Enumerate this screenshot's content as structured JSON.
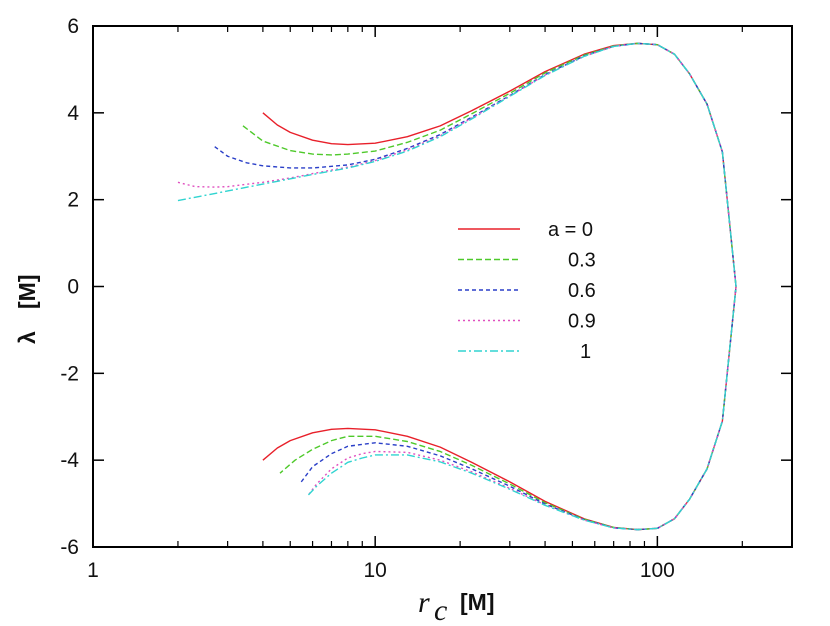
{
  "chart_data": {
    "type": "line",
    "xscale": "log",
    "xlim": [
      1,
      300
    ],
    "ylim": [
      -6,
      6
    ],
    "xticks": [
      {
        "value": 1,
        "label": "1"
      },
      {
        "value": 10,
        "label": "10"
      },
      {
        "value": 100,
        "label": "100"
      }
    ],
    "yticks": [
      {
        "value": 6,
        "label": "6"
      },
      {
        "value": 4,
        "label": "4"
      },
      {
        "value": 2,
        "label": "2"
      },
      {
        "value": 0,
        "label": "0"
      },
      {
        "value": -2,
        "label": "-2"
      },
      {
        "value": -4,
        "label": "-4"
      },
      {
        "value": -6,
        "label": "-6"
      }
    ],
    "xlabel": {
      "symbol": "r",
      "subscript": "c",
      "unit": "[M]"
    },
    "ylabel": {
      "symbol": "λ",
      "unit": "[M]"
    },
    "legend": {
      "position": "center-right"
    },
    "series": [
      {
        "name": "a = 0",
        "color": "#e8202a",
        "dash": "none",
        "x": [
          4.0,
          4.5,
          5,
          6,
          7,
          8,
          10,
          13,
          17,
          22,
          30,
          40,
          55,
          70,
          85,
          100,
          115,
          130,
          150,
          170,
          190,
          170,
          150,
          130,
          115,
          100,
          85,
          70,
          55,
          40,
          30,
          22,
          17,
          13,
          10,
          8,
          7,
          6,
          5,
          4.5,
          4.0
        ],
        "y": [
          4.0,
          3.72,
          3.55,
          3.37,
          3.29,
          3.27,
          3.3,
          3.45,
          3.7,
          4.05,
          4.5,
          4.95,
          5.35,
          5.55,
          5.6,
          5.57,
          5.35,
          4.9,
          4.2,
          3.1,
          0.0,
          -3.1,
          -4.2,
          -4.9,
          -5.35,
          -5.57,
          -5.6,
          -5.55,
          -5.35,
          -4.95,
          -4.5,
          -4.05,
          -3.7,
          -3.45,
          -3.3,
          -3.27,
          -3.29,
          -3.37,
          -3.55,
          -3.72,
          -4.0
        ]
      },
      {
        "name": "0.3",
        "color": "#4ec92a",
        "dash": "6,3",
        "x": [
          3.4,
          4,
          5,
          6,
          7,
          8,
          10,
          13,
          17,
          22,
          30,
          40,
          55,
          70,
          85,
          100,
          115,
          130,
          150,
          170,
          190,
          170,
          150,
          130,
          115,
          100,
          85,
          70,
          55,
          40,
          30,
          22,
          17,
          13,
          10,
          8,
          7,
          6,
          5.2,
          4.6
        ],
        "y": [
          3.7,
          3.35,
          3.13,
          3.05,
          3.03,
          3.05,
          3.12,
          3.32,
          3.6,
          3.98,
          4.45,
          4.92,
          5.33,
          5.54,
          5.6,
          5.57,
          5.35,
          4.9,
          4.2,
          3.1,
          0.0,
          -3.1,
          -4.2,
          -4.9,
          -5.35,
          -5.57,
          -5.6,
          -5.55,
          -5.36,
          -4.98,
          -4.55,
          -4.12,
          -3.8,
          -3.57,
          -3.45,
          -3.45,
          -3.55,
          -3.75,
          -4.0,
          -4.3
        ]
      },
      {
        "name": "0.6",
        "color": "#2a3fc8",
        "dash": "4,3",
        "x": [
          2.7,
          3,
          3.5,
          4,
          5,
          6,
          8,
          10,
          13,
          17,
          22,
          30,
          40,
          55,
          70,
          85,
          100,
          115,
          130,
          150,
          170,
          190,
          170,
          150,
          130,
          115,
          100,
          85,
          70,
          55,
          40,
          30,
          22,
          17,
          13,
          10,
          8,
          7,
          6,
          5.4
        ],
        "y": [
          3.22,
          3.0,
          2.85,
          2.78,
          2.73,
          2.73,
          2.8,
          2.93,
          3.18,
          3.5,
          3.9,
          4.4,
          4.88,
          5.31,
          5.53,
          5.6,
          5.57,
          5.35,
          4.9,
          4.2,
          3.1,
          0.0,
          -3.1,
          -4.2,
          -4.9,
          -5.35,
          -5.57,
          -5.6,
          -5.56,
          -5.37,
          -5.01,
          -4.6,
          -4.2,
          -3.9,
          -3.68,
          -3.6,
          -3.68,
          -3.85,
          -4.15,
          -4.55
        ]
      },
      {
        "name": "0.9",
        "color": "#e050c0",
        "dash": "2,3",
        "x": [
          2.0,
          2.3,
          2.7,
          3,
          4,
          5,
          6,
          8,
          10,
          13,
          17,
          22,
          30,
          40,
          55,
          70,
          85,
          100,
          115,
          130,
          150,
          170,
          190,
          170,
          150,
          130,
          115,
          100,
          85,
          70,
          55,
          40,
          30,
          22,
          17,
          13,
          10,
          9,
          8,
          7,
          6.2,
          5.8
        ],
        "y": [
          2.4,
          2.3,
          2.29,
          2.3,
          2.4,
          2.5,
          2.6,
          2.75,
          2.9,
          3.15,
          3.47,
          3.88,
          4.39,
          4.87,
          5.3,
          5.53,
          5.6,
          5.57,
          5.35,
          4.9,
          4.2,
          3.1,
          0.0,
          -3.1,
          -4.2,
          -4.9,
          -5.35,
          -5.57,
          -5.6,
          -5.56,
          -5.38,
          -5.03,
          -4.65,
          -4.27,
          -4.0,
          -3.82,
          -3.8,
          -3.85,
          -3.95,
          -4.2,
          -4.55,
          -4.8
        ]
      },
      {
        "name": "1",
        "color": "#30d4d0",
        "dash": "8,3,2,3",
        "x": [
          2.0,
          2.5,
          3,
          4,
          5,
          6,
          8,
          10,
          13,
          17,
          22,
          30,
          40,
          55,
          70,
          85,
          100,
          115,
          130,
          150,
          170,
          190,
          170,
          150,
          130,
          115,
          100,
          85,
          70,
          55,
          40,
          30,
          22,
          17,
          13,
          10,
          9,
          8,
          7,
          6.2,
          5.8
        ],
        "y": [
          1.98,
          2.1,
          2.2,
          2.36,
          2.48,
          2.58,
          2.73,
          2.88,
          3.12,
          3.45,
          3.86,
          4.38,
          4.86,
          5.3,
          5.53,
          5.6,
          5.57,
          5.35,
          4.9,
          4.2,
          3.1,
          0.0,
          -3.1,
          -4.2,
          -4.9,
          -5.35,
          -5.57,
          -5.6,
          -5.56,
          -5.38,
          -5.04,
          -4.67,
          -4.3,
          -4.04,
          -3.88,
          -3.88,
          -3.95,
          -4.05,
          -4.3,
          -4.6,
          -4.8
        ]
      }
    ]
  }
}
